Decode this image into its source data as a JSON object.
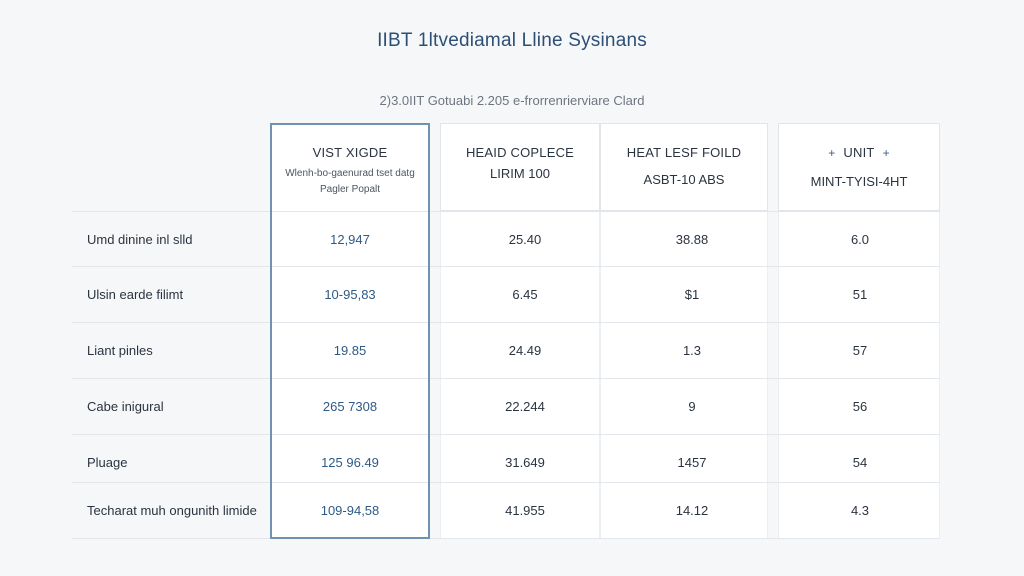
{
  "title": "IIBT 1ltvediamal Lline Sysinans",
  "subtitle": "2)3.0IIT Gotuabi 2.205 e-frorrenrierviare Clard",
  "columns": [
    {
      "line1": "VIST XIGDE",
      "small1": "Wlenh-bo-gaenurad tset datg",
      "small2": "Pagler Popalt"
    },
    {
      "line1": "HEAID COPLECE",
      "line2": "LIRIM 100"
    },
    {
      "line1": "HEAT LESF FOILD",
      "line2": "ASBT-10 ABS"
    },
    {
      "line1": "UNIT",
      "line2": "MINT-TYISI-4HT",
      "plus": "+"
    }
  ],
  "rows": [
    {
      "label": "Umd dinine inl slld",
      "values": [
        "12,947",
        "25.40",
        "38.88",
        "6.0"
      ]
    },
    {
      "label": "Ulsin earde filimt",
      "values": [
        "10-95,83",
        "6.45",
        "$1",
        "51"
      ]
    },
    {
      "label": "Liant pinles",
      "values": [
        "19.85",
        "24.49",
        "1.3",
        "57"
      ]
    },
    {
      "label": "Cabe inigural",
      "values": [
        "265 7308",
        "22.244",
        "9",
        "56"
      ]
    },
    {
      "label": "Pluage",
      "values": [
        "125 96.49",
        "31.649",
        "1457",
        "54"
      ]
    },
    {
      "label": "Techarat muh ongunith limide",
      "values": [
        "109-94,58",
        "41.955",
        "14.12",
        "4.3"
      ]
    }
  ]
}
